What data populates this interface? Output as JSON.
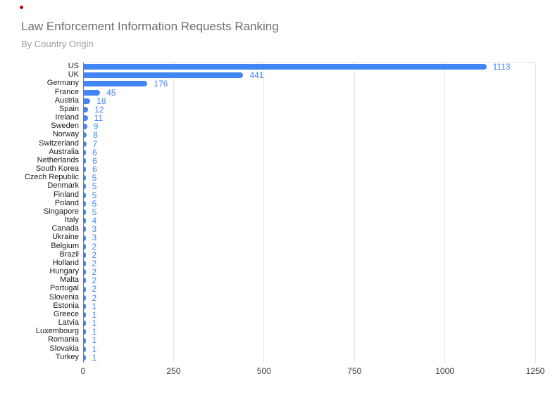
{
  "decorations": {
    "red_dot_color": "#cc0000"
  },
  "header": {
    "title": "Law Enforcement Information Requests Ranking",
    "subtitle": "By Country Origin"
  },
  "chart_data": {
    "type": "bar",
    "orientation": "horizontal",
    "title": "Law Enforcement Information Requests Ranking",
    "subtitle": "By Country Origin",
    "categories": [
      "US",
      "UK",
      "Germany",
      "France",
      "Austria",
      "Spain",
      "Ireland",
      "Sweden",
      "Norway",
      "Switzerland",
      "Australia",
      "Netherlands",
      "South Korea",
      "Czech Republic",
      "Denmark",
      "Finland",
      "Poland",
      "Singapore",
      "Italy",
      "Canada",
      "Ukraine",
      "Belgium",
      "Brazil",
      "Holland",
      "Hungary",
      "Malta",
      "Portugal",
      "Slovenia",
      "Estonia",
      "Greece",
      "Latvia",
      "Luxembourg",
      "Romania",
      "Slovakia",
      "Turkey"
    ],
    "values": [
      1113,
      441,
      176,
      45,
      18,
      12,
      11,
      9,
      8,
      7,
      6,
      6,
      6,
      5,
      5,
      5,
      5,
      5,
      4,
      3,
      3,
      2,
      2,
      2,
      2,
      2,
      2,
      2,
      1,
      1,
      1,
      1,
      1,
      1,
      1
    ],
    "value_labels": [
      "1113",
      "441",
      "176",
      "45",
      "18",
      "12",
      "11",
      "9",
      "8",
      "7",
      "6",
      "6",
      "6",
      "5",
      "5",
      "5",
      "5",
      "5",
      "4",
      "3",
      "3",
      "2",
      "2",
      "2",
      "2",
      "2",
      "2",
      "2",
      "1",
      "1",
      "1",
      "1",
      "1",
      "1",
      "1"
    ],
    "xlim": [
      0,
      1250
    ],
    "x_ticks": [
      0,
      250,
      500,
      750,
      1000,
      1250
    ],
    "grid": "vertical",
    "legend": "none",
    "data_labels": "outside-end",
    "colors": {
      "bar": "#4285f4",
      "value_label": "#4285f4",
      "title": "#6e6e6e",
      "subtitle": "#9e9e9e",
      "category_label": "#1a1a1a",
      "tick_label": "#3c3c3c",
      "gridline": "#e3e3e3",
      "axis_line": "#777777"
    }
  }
}
